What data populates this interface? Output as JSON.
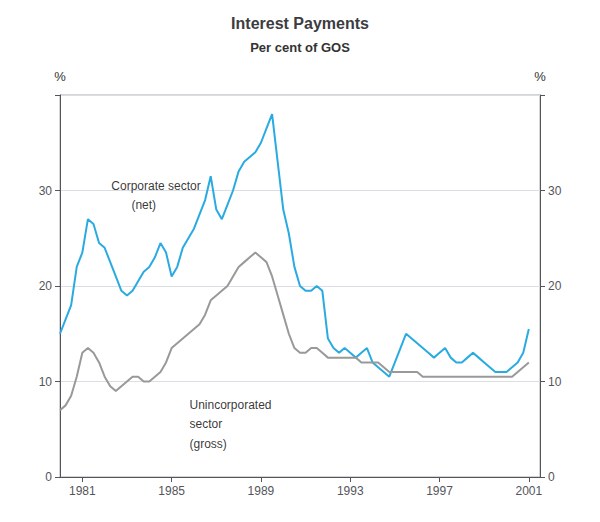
{
  "chart_data": {
    "type": "line",
    "title": "Interest Payments",
    "subtitle": "Per cent of GOS",
    "ylabel": "%",
    "y2label": "%",
    "xlim": [
      1980.0,
      2001.5
    ],
    "xticks": [
      1981,
      1985,
      1989,
      1993,
      1997,
      2001
    ],
    "ylim": [
      0,
      40
    ],
    "yticks": [
      0,
      10,
      20,
      30
    ],
    "y2lim": [
      0,
      40
    ],
    "y2ticks": [
      0,
      10,
      20,
      30
    ],
    "grid": true,
    "x": [
      1980.0,
      1980.25,
      1980.5,
      1980.75,
      1981.0,
      1981.25,
      1981.5,
      1981.75,
      1982.0,
      1982.25,
      1982.5,
      1982.75,
      1983.0,
      1983.25,
      1983.5,
      1983.75,
      1984.0,
      1984.25,
      1984.5,
      1984.75,
      1985.0,
      1985.25,
      1985.5,
      1985.75,
      1986.0,
      1986.25,
      1986.5,
      1986.75,
      1987.0,
      1987.25,
      1987.5,
      1987.75,
      1988.0,
      1988.25,
      1988.5,
      1988.75,
      1989.0,
      1989.25,
      1989.5,
      1989.75,
      1990.0,
      1990.25,
      1990.5,
      1990.75,
      1991.0,
      1991.25,
      1991.5,
      1991.75,
      1992.0,
      1992.25,
      1992.5,
      1992.75,
      1993.0,
      1993.25,
      1993.5,
      1993.75,
      1994.0,
      1994.25,
      1994.5,
      1994.75,
      1995.0,
      1995.25,
      1995.5,
      1995.75,
      1996.0,
      1996.25,
      1996.5,
      1996.75,
      1997.0,
      1997.25,
      1997.5,
      1997.75,
      1998.0,
      1998.25,
      1998.5,
      1998.75,
      1999.0,
      1999.25,
      1999.5,
      1999.75,
      2000.0,
      2000.25,
      2000.5,
      2000.75,
      2001.0
    ],
    "series": [
      {
        "color": "#29abe2",
        "values": [
          15.0,
          16.5,
          18.0,
          22.0,
          23.5,
          27.0,
          26.5,
          24.5,
          24.0,
          22.5,
          21.0,
          19.5,
          19.0,
          19.5,
          20.5,
          21.5,
          22.0,
          23.0,
          24.5,
          23.5,
          21.0,
          22.0,
          24.0,
          25.0,
          26.0,
          27.5,
          29.0,
          31.5,
          28.0,
          27.0,
          28.5,
          30.0,
          32.0,
          33.0,
          33.5,
          34.0,
          35.0,
          36.5,
          38.0,
          33.0,
          28.0,
          25.5,
          22.0,
          20.0,
          19.5,
          19.5,
          20.0,
          19.5,
          14.5,
          13.5,
          13.0,
          13.5,
          13.0,
          12.5,
          13.0,
          13.5,
          12.0,
          11.5,
          11.0,
          10.5,
          12.0,
          13.5,
          15.0,
          14.5,
          14.0,
          13.5,
          13.0,
          12.5,
          13.0,
          13.5,
          12.5,
          12.0,
          12.0,
          12.5,
          13.0,
          12.5,
          12.0,
          11.5,
          11.0,
          11.0,
          11.0,
          11.5,
          12.0,
          13.0,
          15.5
        ]
      },
      {
        "color": "#999999",
        "values": [
          7.0,
          7.5,
          8.5,
          10.5,
          13.0,
          13.5,
          13.0,
          12.0,
          10.5,
          9.5,
          9.0,
          9.5,
          10.0,
          10.5,
          10.5,
          10.0,
          10.0,
          10.5,
          11.0,
          12.0,
          13.5,
          14.0,
          14.5,
          15.0,
          15.5,
          16.0,
          17.0,
          18.5,
          19.0,
          19.5,
          20.0,
          21.0,
          22.0,
          22.5,
          23.0,
          23.5,
          23.0,
          22.5,
          21.0,
          19.0,
          17.0,
          15.0,
          13.5,
          13.0,
          13.0,
          13.5,
          13.5,
          13.0,
          12.5,
          12.5,
          12.5,
          12.5,
          12.5,
          12.5,
          12.0,
          12.0,
          12.0,
          12.0,
          11.5,
          11.0,
          11.0,
          11.0,
          11.0,
          11.0,
          11.0,
          10.5,
          10.5,
          10.5,
          10.5,
          10.5,
          10.5,
          10.5,
          10.5,
          10.5,
          10.5,
          10.5,
          10.5,
          10.5,
          10.5,
          10.5,
          10.5,
          10.5,
          11.0,
          11.5,
          12.0
        ]
      }
    ],
    "annotations": [
      {
        "text": "Corporate sector",
        "x": 1982.3,
        "y": 30.5
      },
      {
        "text": "(net)",
        "x": 1983.2,
        "y": 28.5
      },
      {
        "text": "Unincorporated",
        "x": 1985.8,
        "y": 7.5
      },
      {
        "text": "sector",
        "x": 1985.8,
        "y": 5.5
      },
      {
        "text": "(gross)",
        "x": 1985.8,
        "y": 3.5
      }
    ]
  }
}
